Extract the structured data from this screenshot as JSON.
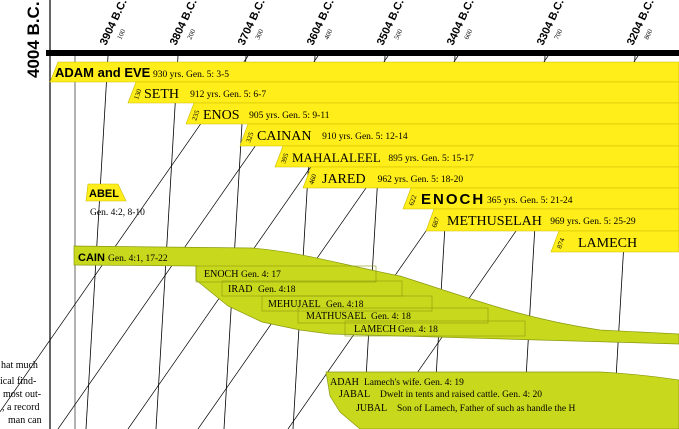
{
  "chart_data": {
    "type": "timeline",
    "start_label": "4004 B.C.",
    "year_labels": [
      "3904 B.C.",
      "3804 B.C.",
      "3704 B.C.",
      "3604 B.C.",
      "3504 B.C.",
      "3404 B.C.",
      "3304 B.C.",
      "3204 B.C."
    ],
    "year_numbers": [
      "100",
      "200",
      "300",
      "400",
      "500",
      "600",
      "700",
      "800"
    ],
    "seth_line": [
      {
        "birth": "",
        "name": "ADAM and EVE",
        "info": "930 yrs. Gen. 5: 3-5"
      },
      {
        "birth": "130",
        "name": "SETH",
        "info": "912 yrs. Gen. 5: 6-7"
      },
      {
        "birth": "235",
        "name": "ENOS",
        "info": "905 yrs. Gen. 5: 9-11"
      },
      {
        "birth": "325",
        "name": "CAINAN",
        "info": "910 yrs. Gen. 5: 12-14"
      },
      {
        "birth": "395",
        "name": "MAHALALEEL",
        "info": "895 yrs. Gen. 5: 15-17"
      },
      {
        "birth": "460",
        "name": "JARED",
        "info": "962 yrs. Gen. 5: 18-20"
      },
      {
        "birth": "622",
        "name": "ENOCH",
        "info": "365 yrs. Gen. 5: 21-24"
      },
      {
        "birth": "687",
        "name": "METHUSELAH",
        "info": "969 yrs. Gen. 5: 25-29"
      },
      {
        "birth": "874",
        "name": "LAMECH",
        "info": ""
      }
    ],
    "abel": {
      "name": "ABEL",
      "ref": "Gen. 4:2, 8-10"
    },
    "cain_line": [
      {
        "name": "CAIN",
        "info": "Gen. 4:1, 17-22"
      },
      {
        "name": "ENOCH",
        "info": "Gen. 4: 17"
      },
      {
        "name": "IRAD",
        "info": "Gen. 4:18"
      },
      {
        "name": "MEHUJAEL",
        "info": "Gen. 4:18"
      },
      {
        "name": "MATHUSAEL",
        "info": "Gen. 4: 18"
      },
      {
        "name": "LAMECH",
        "info": "Gen. 4: 18"
      }
    ],
    "lamech_family": [
      {
        "name": "ADAH",
        "info": "Lamech's wife.  Gen. 4: 19"
      },
      {
        "name": "JABAL",
        "info": "Dwelt in tents and raised cattle.      Gen. 4: 20"
      },
      {
        "name": "JUBAL",
        "info": "Son of Lamech, Father of such as handle the H"
      }
    ],
    "side_text": [
      "hat much",
      "ical find-",
      "most out-",
      ", a record",
      "man can",
      ""
    ]
  }
}
